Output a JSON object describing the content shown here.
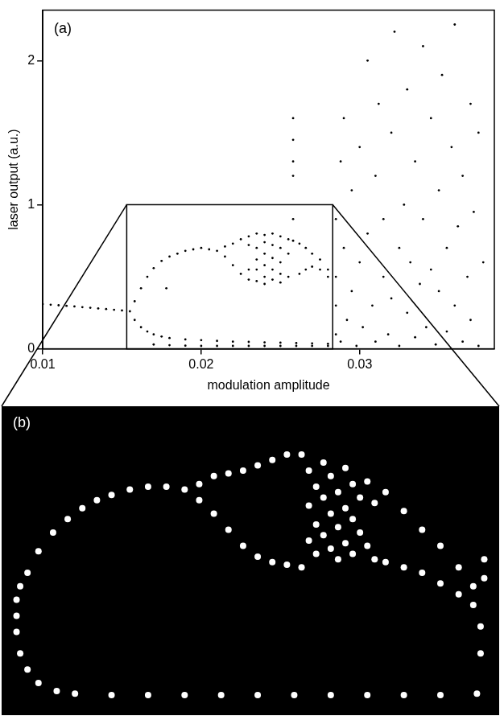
{
  "chart_data": [
    {
      "type": "scatter",
      "panel": "(a)",
      "x_label": "modulation amplitude",
      "y_label": "laser output (a.u.)",
      "xlim": [
        0.01,
        0.0385
      ],
      "ylim": [
        0,
        2.35
      ],
      "xticks": [
        0.01,
        0.02,
        0.03
      ],
      "yticks": [
        0,
        1,
        2
      ],
      "grid": false,
      "marker": "dot",
      "color": "#000000",
      "zoom_region": {
        "x": [
          0.0153,
          0.0283
        ],
        "y": [
          0,
          1
        ]
      },
      "x": [
        0.01,
        0.0105,
        0.011,
        0.0115,
        0.012,
        0.0125,
        0.013,
        0.0135,
        0.014,
        0.0145,
        0.015,
        0.0155,
        0.0158,
        0.0162,
        0.0166,
        0.017,
        0.0175,
        0.018,
        0.0185,
        0.019,
        0.0195,
        0.02,
        0.0205,
        0.021,
        0.0158,
        0.0162,
        0.0166,
        0.017,
        0.0175,
        0.018,
        0.019,
        0.02,
        0.021,
        0.022,
        0.023,
        0.024,
        0.025,
        0.026,
        0.027,
        0.028,
        0.017,
        0.018,
        0.019,
        0.02,
        0.021,
        0.022,
        0.023,
        0.024,
        0.025,
        0.026,
        0.027,
        0.028,
        0.0215,
        0.0215,
        0.022,
        0.022,
        0.0225,
        0.0225,
        0.023,
        0.023,
        0.023,
        0.023,
        0.0235,
        0.0235,
        0.0235,
        0.0235,
        0.0235,
        0.024,
        0.024,
        0.024,
        0.024,
        0.024,
        0.024,
        0.0245,
        0.0245,
        0.0245,
        0.0245,
        0.0245,
        0.025,
        0.025,
        0.025,
        0.025,
        0.025,
        0.0255,
        0.0255,
        0.0255,
        0.0258,
        0.0258,
        0.0258,
        0.0258,
        0.0258,
        0.0258,
        0.0262,
        0.0262,
        0.0266,
        0.0266,
        0.027,
        0.027,
        0.0275,
        0.0275,
        0.028,
        0.028,
        0.0178,
        0.0285,
        0.0285,
        0.0285,
        0.0285,
        0.0288,
        0.0288,
        0.029,
        0.029,
        0.0292,
        0.0295,
        0.0295,
        0.0298,
        0.03,
        0.03,
        0.0302,
        0.0305,
        0.0305,
        0.0308,
        0.031,
        0.031,
        0.0312,
        0.0315,
        0.0315,
        0.0318,
        0.032,
        0.032,
        0.0322,
        0.0325,
        0.0325,
        0.0328,
        0.033,
        0.033,
        0.0332,
        0.0335,
        0.0335,
        0.0338,
        0.034,
        0.034,
        0.0342,
        0.0345,
        0.0345,
        0.0348,
        0.035,
        0.035,
        0.0352,
        0.0355,
        0.0355,
        0.0358,
        0.036,
        0.036,
        0.0362,
        0.0365,
        0.0365,
        0.0368,
        0.037,
        0.037,
        0.0372,
        0.0375,
        0.0375,
        0.0378
      ],
      "values": [
        0.31,
        0.306,
        0.302,
        0.298,
        0.294,
        0.289,
        0.285,
        0.28,
        0.276,
        0.271,
        0.266,
        0.26,
        0.33,
        0.42,
        0.5,
        0.56,
        0.61,
        0.64,
        0.66,
        0.68,
        0.69,
        0.7,
        0.69,
        0.68,
        0.2,
        0.15,
        0.12,
        0.1,
        0.085,
        0.075,
        0.065,
        0.06,
        0.055,
        0.05,
        0.048,
        0.045,
        0.043,
        0.04,
        0.038,
        0.035,
        0.03,
        0.025,
        0.022,
        0.02,
        0.02,
        0.02,
        0.02,
        0.02,
        0.02,
        0.02,
        0.02,
        0.02,
        0.71,
        0.64,
        0.73,
        0.58,
        0.76,
        0.52,
        0.78,
        0.48,
        0.72,
        0.55,
        0.8,
        0.7,
        0.62,
        0.47,
        0.55,
        0.79,
        0.74,
        0.66,
        0.58,
        0.5,
        0.45,
        0.8,
        0.72,
        0.63,
        0.55,
        0.48,
        0.78,
        0.7,
        0.6,
        0.52,
        0.46,
        0.76,
        0.66,
        0.5,
        1.6,
        1.45,
        1.3,
        1.2,
        0.9,
        0.75,
        0.73,
        0.52,
        0.7,
        0.55,
        0.66,
        0.57,
        0.62,
        0.55,
        0.55,
        0.5,
        0.42,
        0.1,
        0.5,
        0.9,
        0.3,
        1.3,
        0.05,
        0.7,
        1.6,
        0.2,
        1.1,
        0.4,
        0.02,
        1.4,
        0.6,
        0.15,
        2.0,
        0.8,
        0.3,
        1.2,
        0.05,
        1.7,
        0.5,
        0.9,
        0.1,
        1.5,
        0.35,
        2.2,
        0.7,
        0.02,
        1.0,
        1.8,
        0.25,
        0.6,
        1.3,
        0.08,
        0.45,
        2.1,
        0.9,
        0.15,
        1.6,
        0.55,
        0.03,
        1.1,
        0.4,
        1.9,
        0.7,
        0.12,
        1.4,
        0.3,
        2.25,
        0.85,
        0.05,
        1.2,
        0.5,
        1.7,
        0.2,
        0.95,
        0.02,
        1.5,
        0.6
      ]
    },
    {
      "type": "scatter",
      "panel": "(b)",
      "xlim": [
        0.0153,
        0.0283
      ],
      "ylim": [
        0,
        1
      ],
      "tick_labels": false,
      "grid": false,
      "marker": "dot",
      "color": "#ffffff",
      "x": [
        0.0154,
        0.0154,
        0.0154,
        0.0155,
        0.0157,
        0.016,
        0.0164,
        0.0168,
        0.0172,
        0.0176,
        0.018,
        0.0185,
        0.019,
        0.0195,
        0.02,
        0.0204,
        0.0208,
        0.0212,
        0.0216,
        0.022,
        0.0224,
        0.0228,
        0.0232,
        0.0204,
        0.0208,
        0.0212,
        0.0216,
        0.022,
        0.0224,
        0.0228,
        0.0232,
        0.0234,
        0.0234,
        0.0234,
        0.0236,
        0.0236,
        0.0236,
        0.0238,
        0.0238,
        0.0238,
        0.024,
        0.024,
        0.024,
        0.0242,
        0.0242,
        0.0242,
        0.0244,
        0.0244,
        0.0244,
        0.0246,
        0.0246,
        0.0246,
        0.0248,
        0.0248,
        0.025,
        0.025,
        0.0252,
        0.0252,
        0.0255,
        0.026,
        0.0265,
        0.027,
        0.0275,
        0.0279,
        0.0255,
        0.026,
        0.0265,
        0.027,
        0.0275,
        0.0279,
        0.0281,
        0.0281,
        0.0282,
        0.0282,
        0.0155,
        0.0157,
        0.016,
        0.0165,
        0.017,
        0.018,
        0.019,
        0.02,
        0.021,
        0.022,
        0.023,
        0.024,
        0.025,
        0.026,
        0.027,
        0.028
      ],
      "values": [
        0.28,
        0.34,
        0.4,
        0.45,
        0.5,
        0.58,
        0.65,
        0.7,
        0.74,
        0.77,
        0.79,
        0.81,
        0.82,
        0.82,
        0.81,
        0.83,
        0.86,
        0.87,
        0.88,
        0.9,
        0.92,
        0.94,
        0.94,
        0.77,
        0.72,
        0.66,
        0.6,
        0.56,
        0.54,
        0.53,
        0.52,
        0.88,
        0.75,
        0.62,
        0.82,
        0.68,
        0.57,
        0.91,
        0.78,
        0.64,
        0.86,
        0.72,
        0.59,
        0.8,
        0.67,
        0.55,
        0.89,
        0.74,
        0.61,
        0.83,
        0.7,
        0.57,
        0.78,
        0.65,
        0.84,
        0.6,
        0.76,
        0.55,
        0.8,
        0.73,
        0.66,
        0.6,
        0.52,
        0.45,
        0.54,
        0.52,
        0.5,
        0.46,
        0.42,
        0.38,
        0.3,
        0.2,
        0.55,
        0.48,
        0.2,
        0.14,
        0.09,
        0.06,
        0.05,
        0.045,
        0.045,
        0.045,
        0.045,
        0.045,
        0.045,
        0.045,
        0.045,
        0.045,
        0.045,
        0.05
      ]
    }
  ]
}
